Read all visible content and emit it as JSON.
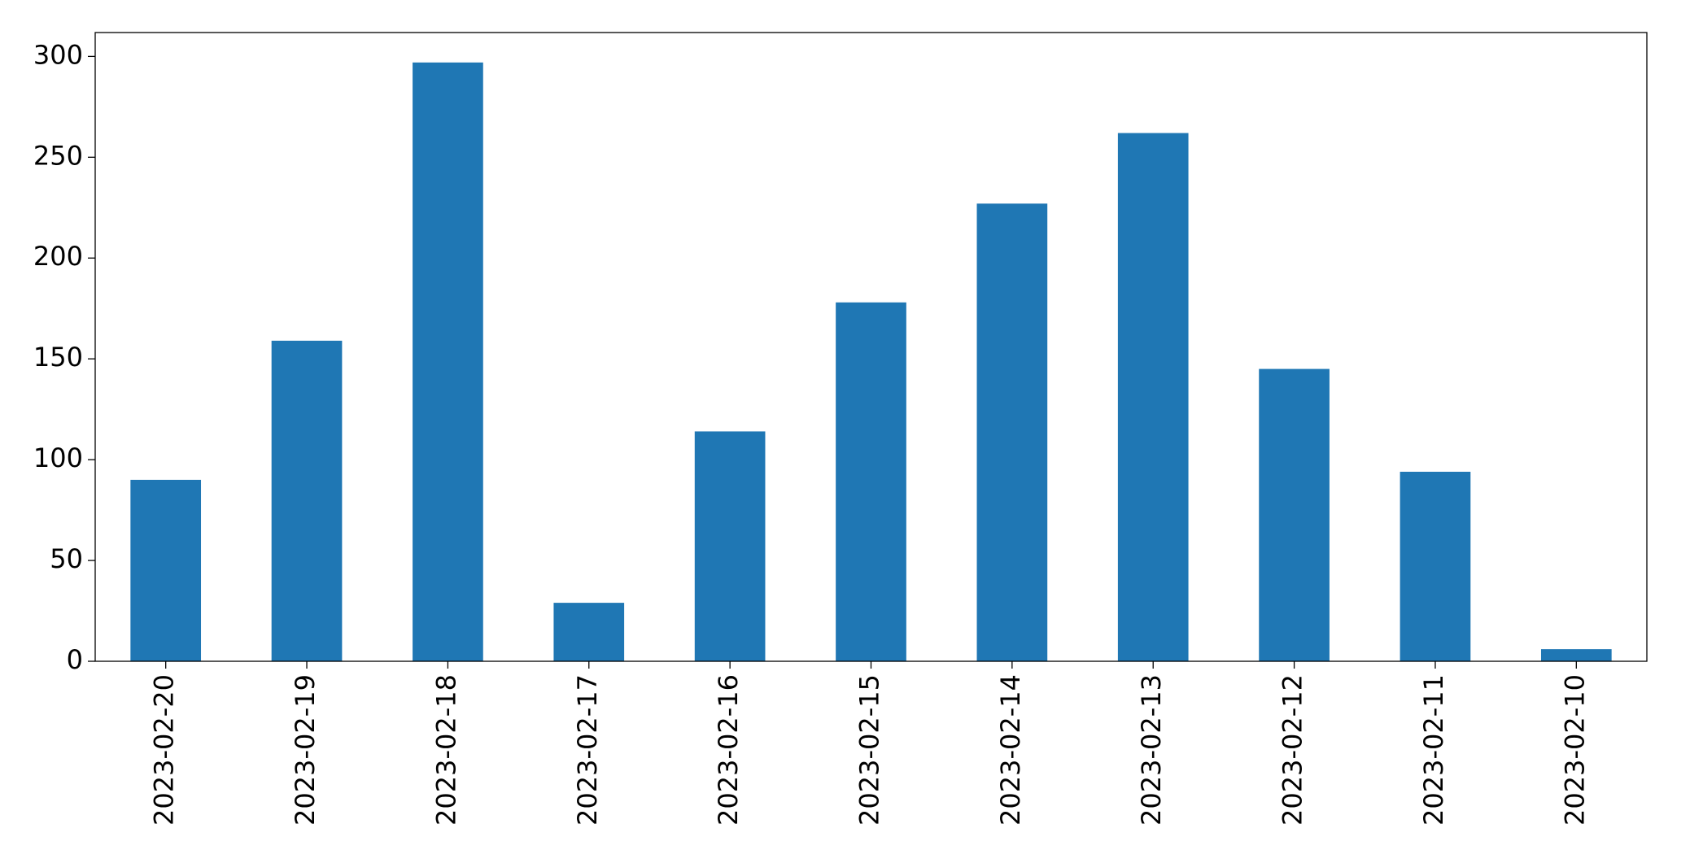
{
  "chart_data": {
    "type": "bar",
    "categories": [
      "2023-02-20",
      "2023-02-19",
      "2023-02-18",
      "2023-02-17",
      "2023-02-16",
      "2023-02-15",
      "2023-02-14",
      "2023-02-13",
      "2023-02-12",
      "2023-02-11",
      "2023-02-10"
    ],
    "values": [
      90,
      159,
      297,
      29,
      114,
      178,
      227,
      262,
      145,
      94,
      6
    ],
    "color": "#1f77b4",
    "ylim": [
      0,
      311.85
    ],
    "yticks": [
      0,
      50,
      100,
      150,
      200,
      250,
      300
    ],
    "grid": false
  }
}
